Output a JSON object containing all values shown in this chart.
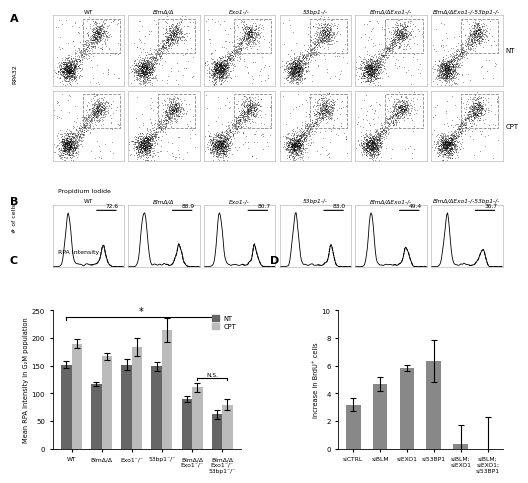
{
  "panel_C": {
    "categories": [
      "WT",
      "BlmΔ/Δ",
      "Exo1-/-",
      "53bp1-/-",
      "BlmΔ/Δ\nExo1-/-",
      "BlmΔ/Δ\nExo1-/-\n53bp1-/-"
    ],
    "NT_values": [
      152,
      117,
      152,
      149,
      90,
      62
    ],
    "CPT_values": [
      190,
      167,
      184,
      215,
      111,
      80
    ],
    "NT_errors": [
      6,
      4,
      10,
      8,
      6,
      8
    ],
    "CPT_errors": [
      8,
      6,
      16,
      22,
      8,
      10
    ],
    "NT_color": "#666666",
    "CPT_color": "#bbbbbb",
    "ylabel": "Mean RPA intensity in G2M population",
    "ylim": [
      0,
      250
    ],
    "yticks": [
      0,
      50,
      100,
      150,
      200,
      250
    ]
  },
  "panel_D": {
    "categories": [
      "siCTRL",
      "siBLM",
      "siEXO1",
      "si53BP1",
      "siBLM;\nsiEXO1",
      "siBLM;\nsiEXO1;\nsi53BP1"
    ],
    "values": [
      3.2,
      4.7,
      5.85,
      6.35,
      0.35,
      0.0
    ],
    "errors": [
      0.5,
      0.5,
      0.2,
      1.5,
      1.4,
      2.3
    ],
    "bar_color": "#888888",
    "ylabel": "Increase in BrdU+ cells",
    "ylim": [
      0,
      10
    ],
    "yticks": [
      0,
      2,
      4,
      6,
      8,
      10
    ]
  },
  "panel_A_col_labels": [
    "WT",
    "BlmΔ/Δ",
    "Exo1-/-",
    "53bp1-/-",
    "BlmΔ/ΔExo1-/-",
    "BlmΔ/ΔExo1-/-53bp1-/-"
  ],
  "panel_A_col_italic": [
    false,
    true,
    true,
    true,
    true,
    true
  ],
  "panel_B_values": [
    "72.6",
    "88.9",
    "80.7",
    "83.0",
    "49.4",
    "36.7"
  ]
}
